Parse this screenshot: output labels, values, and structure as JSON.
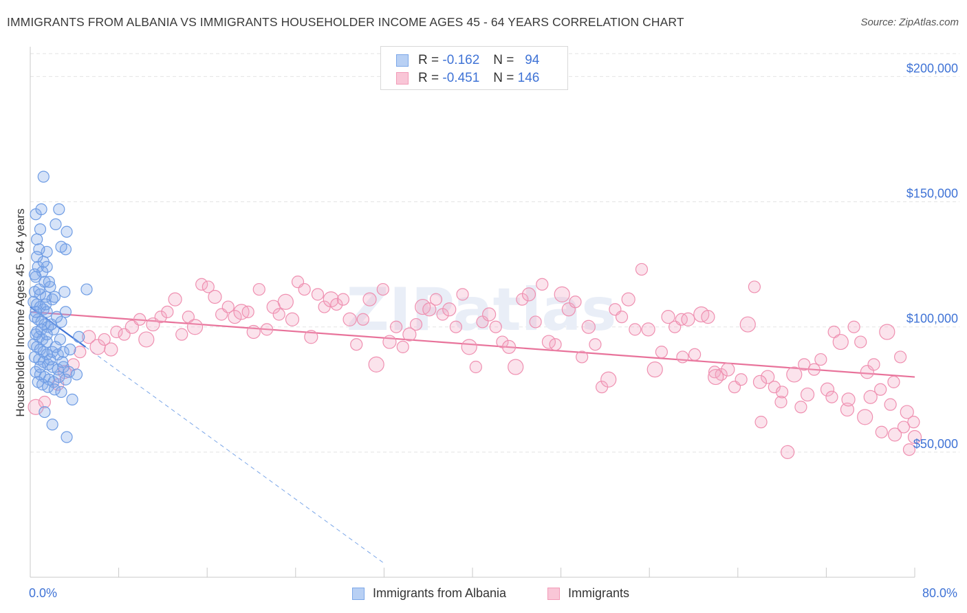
{
  "title": "IMMIGRANTS FROM ALBANIA VS IMMIGRANTS HOUSEHOLDER INCOME AGES 45 - 64 YEARS CORRELATION CHART",
  "source": "Source: ZipAtlas.com",
  "watermark": "ZIPatlas",
  "legend_top": {
    "rows": [
      {
        "r_label": "R =",
        "r_value": "-0.162",
        "n_label": "N =",
        "n_value": "94",
        "color": "#7aa6e8"
      },
      {
        "r_label": "R =",
        "r_value": "-0.451",
        "n_label": "N =",
        "n_value": "146",
        "color": "#f29ab7"
      }
    ]
  },
  "colors": {
    "blue": "#5b8fde",
    "blue_fill": "rgba(120,165,235,0.35)",
    "pink": "#e8729a",
    "pink_fill": "rgba(242,160,190,0.35)",
    "axis_label": "#3f73d6",
    "grid": "#e6e6e6"
  },
  "chart_data": {
    "type": "scatter",
    "title": "IMMIGRANTS FROM ALBANIA VS IMMIGRANTS HOUSEHOLDER INCOME AGES 45 - 64 YEARS CORRELATION CHART",
    "xlabel": "",
    "ylabel": "Householder Income Ages 45 - 64 years",
    "xlim": [
      0,
      80
    ],
    "ylim": [
      0,
      210000
    ],
    "x_tick_labels": [
      "0.0%",
      "80.0%"
    ],
    "y_ticks": [
      50000,
      100000,
      150000,
      200000
    ],
    "y_tick_labels": [
      "$50,000",
      "$100,000",
      "$150,000",
      "$200,000"
    ],
    "grid": true,
    "legend_position": "bottom",
    "series": [
      {
        "name": "Immigrants from Albania",
        "color": "#5b8fde",
        "trend": {
          "x0": 0,
          "y0": 108000,
          "x1": 5,
          "y1": 92000,
          "dashed_to_x": 32
        },
        "points": [
          [
            1.2,
            160000
          ],
          [
            0.5,
            145000
          ],
          [
            1.0,
            147000
          ],
          [
            2.6,
            147000
          ],
          [
            0.9,
            139000
          ],
          [
            2.3,
            141000
          ],
          [
            3.3,
            138000
          ],
          [
            0.6,
            135000
          ],
          [
            1.5,
            130000
          ],
          [
            3.2,
            131000
          ],
          [
            0.8,
            131000
          ],
          [
            2.8,
            132000
          ],
          [
            0.7,
            124000
          ],
          [
            1.1,
            122000
          ],
          [
            1.5,
            124000
          ],
          [
            0.5,
            120000
          ],
          [
            1.3,
            118000
          ],
          [
            1.8,
            116000
          ],
          [
            0.4,
            114000
          ],
          [
            0.9,
            113000
          ],
          [
            1.4,
            112000
          ],
          [
            2.0,
            111000
          ],
          [
            3.1,
            114000
          ],
          [
            5.1,
            115000
          ],
          [
            0.3,
            110000
          ],
          [
            0.6,
            109000
          ],
          [
            0.9,
            108000
          ],
          [
            1.2,
            107000
          ],
          [
            1.5,
            106000
          ],
          [
            3.2,
            106000
          ],
          [
            0.4,
            104000
          ],
          [
            0.7,
            103000
          ],
          [
            1.0,
            102000
          ],
          [
            1.3,
            101000
          ],
          [
            1.6,
            100000
          ],
          [
            2.1,
            99000
          ],
          [
            2.8,
            102000
          ],
          [
            0.5,
            97000
          ],
          [
            0.8,
            96000
          ],
          [
            1.1,
            95000
          ],
          [
            1.5,
            94000
          ],
          [
            0.3,
            93000
          ],
          [
            0.6,
            92000
          ],
          [
            0.9,
            91000
          ],
          [
            1.2,
            90000
          ],
          [
            1.5,
            89000
          ],
          [
            2.0,
            90000
          ],
          [
            2.5,
            89000
          ],
          [
            3.0,
            90000
          ],
          [
            0.4,
            88000
          ],
          [
            0.8,
            87000
          ],
          [
            1.2,
            86000
          ],
          [
            1.6,
            85000
          ],
          [
            2.0,
            84000
          ],
          [
            2.5,
            83000
          ],
          [
            3.0,
            84000
          ],
          [
            3.5,
            82000
          ],
          [
            0.5,
            82000
          ],
          [
            0.9,
            81000
          ],
          [
            1.3,
            80000
          ],
          [
            1.7,
            79000
          ],
          [
            2.1,
            78000
          ],
          [
            2.6,
            80000
          ],
          [
            3.2,
            79000
          ],
          [
            0.7,
            78000
          ],
          [
            1.1,
            77000
          ],
          [
            1.6,
            76000
          ],
          [
            2.2,
            75000
          ],
          [
            2.8,
            74000
          ],
          [
            3.8,
            71000
          ],
          [
            1.3,
            66000
          ],
          [
            2.0,
            61000
          ],
          [
            3.3,
            56000
          ],
          [
            4.4,
            96000
          ],
          [
            0.6,
            98000
          ],
          [
            1.0,
            99000
          ],
          [
            1.9,
            101000
          ],
          [
            2.4,
            104000
          ],
          [
            0.5,
            106000
          ],
          [
            1.4,
            109000
          ],
          [
            2.2,
            112000
          ],
          [
            0.8,
            115000
          ],
          [
            1.7,
            118000
          ],
          [
            0.4,
            121000
          ],
          [
            1.2,
            126000
          ],
          [
            0.6,
            128000
          ],
          [
            2.7,
            95000
          ],
          [
            3.6,
            91000
          ],
          [
            4.2,
            81000
          ],
          [
            1.8,
            87000
          ],
          [
            2.3,
            92000
          ],
          [
            0.9,
            84000
          ],
          [
            1.5,
            97000
          ],
          [
            2.9,
            86000
          ]
        ]
      },
      {
        "name": "Immigrants",
        "color": "#e8729a",
        "trend": {
          "x0": 0,
          "y0": 106000,
          "x1": 80,
          "y1": 80000
        },
        "points": [
          [
            0.5,
            68000
          ],
          [
            1.3,
            70000
          ],
          [
            2.5,
            77000
          ],
          [
            3.1,
            82000
          ],
          [
            3.9,
            85000
          ],
          [
            4.5,
            90000
          ],
          [
            5.3,
            96000
          ],
          [
            6.1,
            92000
          ],
          [
            6.7,
            95000
          ],
          [
            7.3,
            91000
          ],
          [
            7.8,
            98000
          ],
          [
            8.5,
            97000
          ],
          [
            9.2,
            100000
          ],
          [
            9.9,
            103000
          ],
          [
            10.5,
            95000
          ],
          [
            11.1,
            101000
          ],
          [
            11.8,
            104000
          ],
          [
            12.4,
            106000
          ],
          [
            13.1,
            111000
          ],
          [
            13.7,
            97000
          ],
          [
            14.3,
            104000
          ],
          [
            14.9,
            100000
          ],
          [
            15.5,
            117000
          ],
          [
            16.1,
            116000
          ],
          [
            16.7,
            112000
          ],
          [
            17.3,
            105000
          ],
          [
            17.9,
            108000
          ],
          [
            18.5,
            104000
          ],
          [
            19.1,
            106000
          ],
          [
            19.7,
            106000
          ],
          [
            20.2,
            98000
          ],
          [
            20.7,
            115000
          ],
          [
            21.4,
            99000
          ],
          [
            22.0,
            108000
          ],
          [
            22.5,
            105000
          ],
          [
            23.1,
            110000
          ],
          [
            23.7,
            103000
          ],
          [
            24.2,
            118000
          ],
          [
            24.8,
            115000
          ],
          [
            25.4,
            96000
          ],
          [
            26.0,
            113000
          ],
          [
            26.6,
            108000
          ],
          [
            27.2,
            111000
          ],
          [
            27.7,
            109000
          ],
          [
            28.3,
            111000
          ],
          [
            28.9,
            103000
          ],
          [
            29.5,
            93000
          ],
          [
            30.1,
            103000
          ],
          [
            30.7,
            111000
          ],
          [
            31.3,
            85000
          ],
          [
            31.9,
            115000
          ],
          [
            32.5,
            94000
          ],
          [
            33.1,
            100000
          ],
          [
            33.7,
            92000
          ],
          [
            34.3,
            97000
          ],
          [
            34.9,
            101000
          ],
          [
            35.5,
            108000
          ],
          [
            36.1,
            107000
          ],
          [
            36.7,
            111000
          ],
          [
            37.3,
            105000
          ],
          [
            37.9,
            107000
          ],
          [
            38.5,
            100000
          ],
          [
            39.1,
            113000
          ],
          [
            39.7,
            92000
          ],
          [
            40.3,
            84000
          ],
          [
            40.9,
            102000
          ],
          [
            41.5,
            105000
          ],
          [
            42.1,
            100000
          ],
          [
            42.7,
            94000
          ],
          [
            43.3,
            92000
          ],
          [
            43.9,
            84000
          ],
          [
            44.5,
            111000
          ],
          [
            45.1,
            113000
          ],
          [
            45.7,
            102000
          ],
          [
            46.3,
            117000
          ],
          [
            46.9,
            94000
          ],
          [
            47.5,
            93000
          ],
          [
            48.1,
            113000
          ],
          [
            48.7,
            107000
          ],
          [
            49.3,
            110000
          ],
          [
            49.9,
            88000
          ],
          [
            50.5,
            100000
          ],
          [
            51.1,
            93000
          ],
          [
            51.7,
            76000
          ],
          [
            52.3,
            79000
          ],
          [
            52.9,
            107000
          ],
          [
            53.5,
            104000
          ],
          [
            54.1,
            111000
          ],
          [
            54.7,
            99000
          ],
          [
            55.3,
            123000
          ],
          [
            55.9,
            99000
          ],
          [
            56.5,
            83000
          ],
          [
            57.1,
            90000
          ],
          [
            57.7,
            104000
          ],
          [
            58.3,
            100000
          ],
          [
            58.9,
            103000
          ],
          [
            59.5,
            103000
          ],
          [
            60.1,
            89000
          ],
          [
            60.7,
            105000
          ],
          [
            61.3,
            104000
          ],
          [
            61.9,
            82000
          ],
          [
            62.5,
            81000
          ],
          [
            63.1,
            83000
          ],
          [
            63.7,
            76000
          ],
          [
            64.3,
            79000
          ],
          [
            64.9,
            101000
          ],
          [
            65.5,
            116000
          ],
          [
            66.1,
            62000
          ],
          [
            66.7,
            80000
          ],
          [
            67.3,
            76000
          ],
          [
            67.9,
            70000
          ],
          [
            68.5,
            50000
          ],
          [
            69.1,
            81000
          ],
          [
            69.7,
            68000
          ],
          [
            70.3,
            73000
          ],
          [
            70.9,
            83000
          ],
          [
            71.5,
            87000
          ],
          [
            72.1,
            75000
          ],
          [
            72.7,
            98000
          ],
          [
            73.3,
            94000
          ],
          [
            73.9,
            67000
          ],
          [
            74.5,
            100000
          ],
          [
            75.1,
            94000
          ],
          [
            75.7,
            82000
          ],
          [
            76.3,
            85000
          ],
          [
            76.9,
            75000
          ],
          [
            77.5,
            98000
          ],
          [
            78.1,
            78000
          ],
          [
            78.7,
            88000
          ],
          [
            79.3,
            66000
          ],
          [
            79.9,
            62000
          ],
          [
            72.5,
            72000
          ],
          [
            74.0,
            71000
          ],
          [
            75.5,
            64000
          ],
          [
            77.0,
            58000
          ],
          [
            78.2,
            57000
          ],
          [
            79.0,
            60000
          ],
          [
            79.5,
            51000
          ],
          [
            80.0,
            56000
          ],
          [
            59.0,
            88000
          ],
          [
            62.0,
            80000
          ],
          [
            66.0,
            78000
          ],
          [
            68.0,
            74000
          ],
          [
            70.0,
            85000
          ],
          [
            76.0,
            72000
          ],
          [
            77.8,
            69000
          ]
        ]
      }
    ]
  },
  "axes": {
    "y_title": "Householder Income Ages 45 - 64 years",
    "x_min_label": "0.0%",
    "x_max_label": "80.0%"
  },
  "bottom_legend": {
    "items": [
      {
        "label": "Immigrants from Albania"
      },
      {
        "label": "Immigrants"
      }
    ]
  }
}
